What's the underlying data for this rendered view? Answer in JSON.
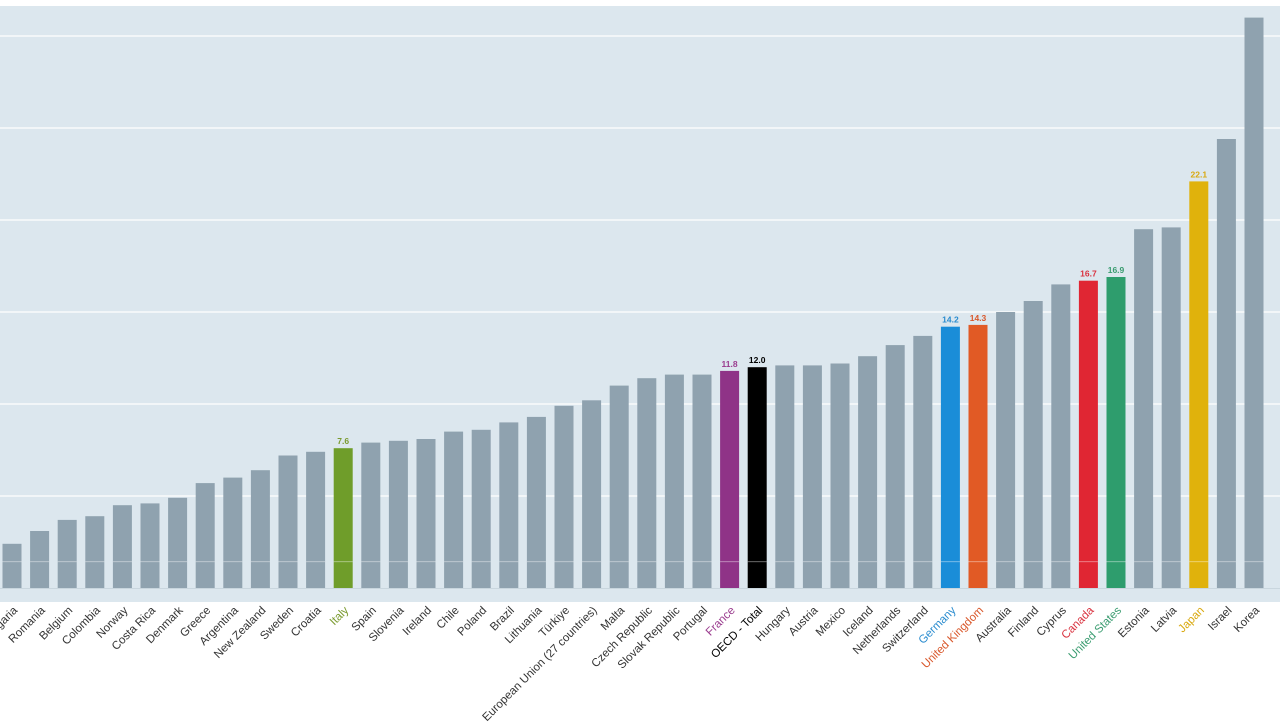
{
  "chart_data": {
    "type": "bar",
    "title": "",
    "xlabel": "",
    "ylabel": "",
    "ylim": [
      0,
      31
    ],
    "grid": true,
    "categories": [
      "Bulgaria",
      "Romania",
      "Belgium",
      "Colombia",
      "Norway",
      "Costa Rica",
      "Denmark",
      "Greece",
      "Argentina",
      "New Zealand",
      "Sweden",
      "Croatia",
      "Italy",
      "Spain",
      "Slovenia",
      "Ireland",
      "Chile",
      "Poland",
      "Brazil",
      "Lithuania",
      "Türkiye",
      "European Union (27 countries)",
      "Malta",
      "Czech Republic",
      "Slovak Republic",
      "Portugal",
      "France",
      "OECD - Total",
      "Hungary",
      "Austria",
      "Mexico",
      "Iceland",
      "Netherlands",
      "Switzerland",
      "Germany",
      "United Kingdom",
      "Australia",
      "Finland",
      "Cyprus",
      "Canada",
      "United States",
      "Estonia",
      "Latvia",
      "Japan",
      "Israel",
      "Korea"
    ],
    "values": [
      2.4,
      3.1,
      3.7,
      3.9,
      4.5,
      4.6,
      4.9,
      5.7,
      6.0,
      6.4,
      7.2,
      7.4,
      7.6,
      7.9,
      8.0,
      8.1,
      8.5,
      8.6,
      9.0,
      9.3,
      9.9,
      10.2,
      11.0,
      11.4,
      11.6,
      11.6,
      11.8,
      12.0,
      12.1,
      12.1,
      12.2,
      12.6,
      13.2,
      13.7,
      14.2,
      14.3,
      15.0,
      15.6,
      16.5,
      16.7,
      16.9,
      19.5,
      19.6,
      22.1,
      24.4,
      31.0
    ],
    "data_labels": {
      "Italy": "7.6",
      "France": "11.8",
      "OECD - Total": "12.0",
      "Germany": "14.2",
      "United Kingdom": "14.3",
      "Canada": "16.7",
      "United States": "16.9",
      "Japan": "22.1"
    },
    "default_color": "#8fa2af",
    "highlight_colors": {
      "Italy": "#6f9d2a",
      "France": "#8f3387",
      "OECD - Total": "#000000",
      "Germany": "#1a8dd8",
      "United Kingdom": "#e15a25",
      "Canada": "#e02633",
      "United States": "#2e9d6d",
      "Japan": "#e0b20c"
    },
    "label_colors": {
      "Italy": "#7a9a2e",
      "France": "#9a3c8e",
      "OECD - Total": "#000000",
      "Germany": "#2a8ccf",
      "United Kingdom": "#d9572a",
      "Canada": "#d9323f",
      "United States": "#3a9c70",
      "Japan": "#d9a90f"
    },
    "plot_background": "#dce7ee",
    "gridline_color": "#ffffff",
    "default_label_color": "#333333"
  }
}
